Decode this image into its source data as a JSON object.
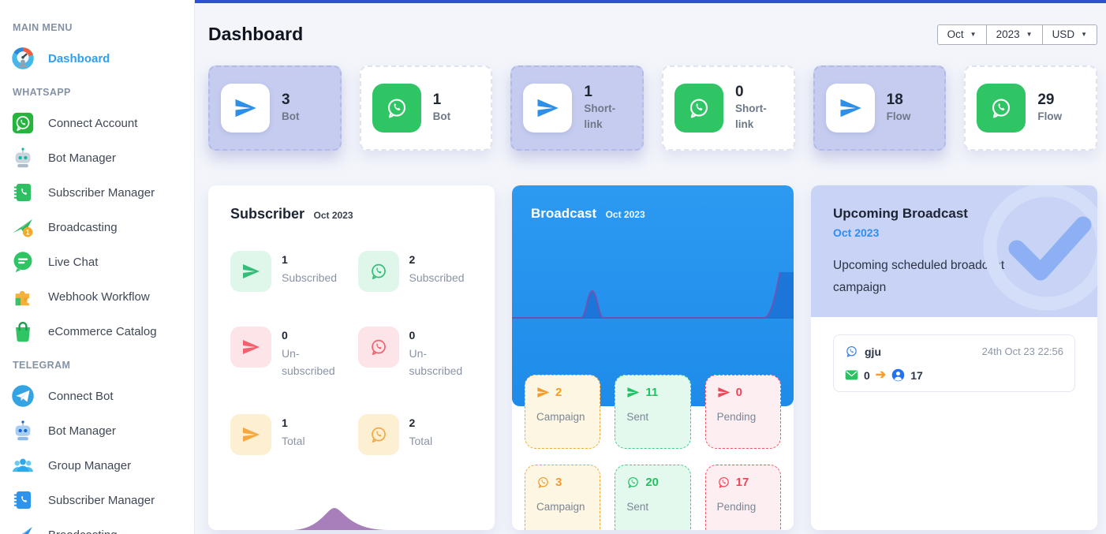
{
  "colors": {
    "accent_bar_blue": "#2b51cd",
    "active_link_blue": "#2e9ff3",
    "telegram_blue": "#2e8fe8",
    "whatsapp_green": "#2fc564",
    "highlight_lavender": "#c6ccf0",
    "broadcast_panel_blue": "#2493f0",
    "success_green": "#1fc262",
    "warning_orange": "#f59a23",
    "danger_red": "#f04557"
  },
  "sidebar": {
    "sections": [
      {
        "heading": "MAIN MENU",
        "items": [
          {
            "label": "Dashboard",
            "icon": "gauge-icon",
            "active": true
          }
        ]
      },
      {
        "heading": "WHATSAPP",
        "items": [
          {
            "label": "Connect Account",
            "icon": "whatsapp-square-icon"
          },
          {
            "label": "Bot Manager",
            "icon": "robot-icon"
          },
          {
            "label": "Subscriber Manager",
            "icon": "contact-book-icon"
          },
          {
            "label": "Broadcasting",
            "icon": "broadcast-plane-icon"
          },
          {
            "label": "Live Chat",
            "icon": "chat-bubble-icon"
          },
          {
            "label": "Webhook Workflow",
            "icon": "puzzle-icon"
          },
          {
            "label": "eCommerce Catalog",
            "icon": "shopping-bag-icon"
          }
        ]
      },
      {
        "heading": "TELEGRAM",
        "items": [
          {
            "label": "Connect Bot",
            "icon": "telegram-circle-icon"
          },
          {
            "label": "Bot Manager",
            "icon": "robot-icon"
          },
          {
            "label": "Group Manager",
            "icon": "group-icon"
          },
          {
            "label": "Subscriber Manager",
            "icon": "contact-book-icon"
          },
          {
            "label": "Broadcasting",
            "icon": "broadcast-plane-icon"
          }
        ]
      }
    ]
  },
  "header": {
    "title": "Dashboard",
    "filters": [
      {
        "label": "Oct"
      },
      {
        "label": "2023"
      },
      {
        "label": "USD"
      }
    ]
  },
  "stats": [
    {
      "value": "3",
      "label": "Bot",
      "platform": "telegram",
      "highlight": true
    },
    {
      "value": "1",
      "label": "Bot",
      "platform": "whatsapp",
      "highlight": false
    },
    {
      "value": "1",
      "label": "Short-link",
      "platform": "telegram",
      "highlight": true
    },
    {
      "value": "0",
      "label": "Short-link",
      "platform": "whatsapp",
      "highlight": false
    },
    {
      "value": "18",
      "label": "Flow",
      "platform": "telegram",
      "highlight": true
    },
    {
      "value": "29",
      "label": "Flow",
      "platform": "whatsapp",
      "highlight": false
    }
  ],
  "subscriber": {
    "title": "Subscriber",
    "period": "Oct 2023",
    "items": [
      {
        "value": "1",
        "label": "Subscribed",
        "platform": "telegram",
        "tone": "green"
      },
      {
        "value": "2",
        "label": "Subscribed",
        "platform": "whatsapp",
        "tone": "green"
      },
      {
        "value": "0",
        "label": "Un-subscribed",
        "platform": "telegram",
        "tone": "red"
      },
      {
        "value": "0",
        "label": "Un-subscribed",
        "platform": "whatsapp",
        "tone": "red"
      },
      {
        "value": "1",
        "label": "Total",
        "platform": "telegram",
        "tone": "yellow"
      },
      {
        "value": "2",
        "label": "Total",
        "platform": "whatsapp",
        "tone": "yellow"
      }
    ]
  },
  "broadcast": {
    "title": "Broadcast",
    "period": "Oct 2023",
    "tiles": [
      {
        "value": "2",
        "label": "Campaign",
        "platform": "telegram",
        "tone": "yellow"
      },
      {
        "value": "11",
        "label": "Sent",
        "platform": "telegram",
        "tone": "green"
      },
      {
        "value": "0",
        "label": "Pending",
        "platform": "telegram",
        "tone": "red"
      },
      {
        "value": "3",
        "label": "Campaign",
        "platform": "whatsapp",
        "tone": "yellow"
      },
      {
        "value": "20",
        "label": "Sent",
        "platform": "whatsapp",
        "tone": "green"
      },
      {
        "value": "17",
        "label": "Pending",
        "platform": "whatsapp",
        "tone": "red"
      }
    ]
  },
  "upcoming": {
    "title": "Upcoming Broadcast",
    "period": "Oct 2023",
    "description": "Upcoming scheduled broadcast campaign",
    "broadcasts": [
      {
        "name": "gju",
        "platform": "whatsapp",
        "timestamp": "24th Oct 23 22:56",
        "sent_count": "0",
        "recipient_count": "17"
      }
    ]
  }
}
